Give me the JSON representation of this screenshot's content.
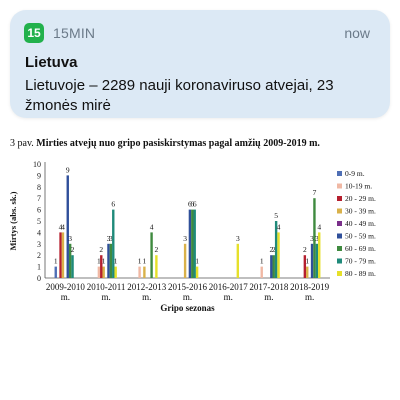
{
  "notification": {
    "app_icon_text": "15",
    "app_name": "15MIN",
    "time": "now",
    "title": "Lietuva",
    "body": "Lietuvoje – 2289 nauji koronaviruso atvejai, 23 žmonės mirė"
  },
  "figure": {
    "caption_prefix": "3 pav.",
    "caption_title": "Mirties atvejų nuo gripo pasiskirstymas pagal amžių 2009-2019 m."
  },
  "chart_data": {
    "type": "bar",
    "title": "",
    "xlabel": "Gripo sezonas",
    "ylabel": "Mirtys (abs. sk.)",
    "ylim": [
      0,
      10
    ],
    "yticks": [
      "0",
      "1",
      "2",
      "3",
      "4",
      "5",
      "6",
      "7",
      "8",
      "9",
      "10"
    ],
    "categories": [
      "2009-2010 m.",
      "2010-2011 m.",
      "2012-2013 m.",
      "2015-2016 m.",
      "2016-2017 m.",
      "2017-2018 m.",
      "2018-2019 m."
    ],
    "category_lines": [
      [
        "2009-2010",
        "m."
      ],
      [
        "2010-2011",
        "m."
      ],
      [
        "2012-2013",
        "m."
      ],
      [
        "2015-2016",
        "m."
      ],
      [
        "2016-2017",
        "m."
      ],
      [
        "2017-2018",
        "m."
      ],
      [
        "2018-2019",
        "m."
      ]
    ],
    "legend_position": "right",
    "series": [
      {
        "name": "0-9 m.",
        "color": "#4f6fb5",
        "values": [
          1,
          0,
          0,
          0,
          0,
          0,
          0
        ]
      },
      {
        "name": "10-19 m.",
        "color": "#f0b8a4",
        "values": [
          0,
          1,
          1,
          0,
          0,
          1,
          0
        ]
      },
      {
        "name": "20 - 29 m.",
        "color": "#b51f2e",
        "values": [
          4,
          2,
          0,
          0,
          0,
          0,
          2
        ]
      },
      {
        "name": "30 - 39 m.",
        "color": "#d9b14a",
        "values": [
          4,
          1,
          1,
          3,
          0,
          0,
          1
        ]
      },
      {
        "name": "40 - 49 m.",
        "color": "#7a2f8a",
        "values": [
          0,
          0,
          0,
          0,
          0,
          0,
          0
        ]
      },
      {
        "name": "50 - 59 m.",
        "color": "#2f4f9a",
        "values": [
          9,
          3,
          0,
          6,
          0,
          2,
          3
        ]
      },
      {
        "name": "60 - 69 m.",
        "color": "#3f8a3f",
        "values": [
          3,
          3,
          4,
          6,
          0,
          2,
          7
        ]
      },
      {
        "name": "70 - 79 m.",
        "color": "#1f8a7a",
        "values": [
          2,
          6,
          0,
          6,
          0,
          5,
          3
        ]
      },
      {
        "name": "80 - 89 m.",
        "color": "#e6e02a",
        "values": [
          0,
          1,
          2,
          1,
          3,
          4,
          4
        ]
      }
    ],
    "data_labels": [
      [
        "1",
        "",
        "4",
        "4",
        "",
        "9",
        "3",
        "2",
        ""
      ],
      [
        "",
        "1",
        "2",
        "1",
        "",
        "3",
        "3",
        "6",
        "1"
      ],
      [
        "",
        "1",
        "",
        "1",
        "",
        "",
        "4",
        "",
        "2"
      ],
      [
        "",
        "",
        "",
        "3",
        "",
        "6",
        "6",
        "6",
        "1"
      ],
      [
        "",
        "",
        "",
        "",
        "",
        "",
        "",
        "",
        "3"
      ],
      [
        "",
        "1",
        "",
        "",
        "",
        "2",
        "2",
        "5",
        "4"
      ],
      [
        "",
        "",
        "2",
        "1",
        "",
        "3",
        "7",
        "3",
        "4"
      ]
    ]
  }
}
